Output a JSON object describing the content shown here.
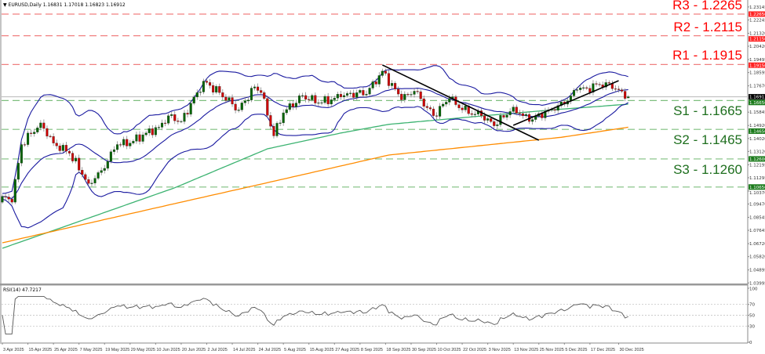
{
  "header": {
    "symbol": "EURUSD,Daily",
    "open": "1.16831",
    "high": "1.17018",
    "low": "1.16823",
    "close": "1.16912"
  },
  "rsi_header": {
    "label": "RSI(14)",
    "value": "47.7217"
  },
  "colors": {
    "resistance": "#ff0000",
    "support": "#006400",
    "bull_candle": "#006400",
    "bear_candle": "#cc0000",
    "bollinger": "#1a1aa0",
    "ma_green": "#3cb371",
    "ma_orange": "#ff8c00",
    "trendline": "#000000",
    "rsi_line": "#555555"
  },
  "levels": [
    {
      "name": "R3",
      "label": "R3 - 1.2265",
      "price": 1.2265,
      "tag": "1.22650",
      "kind": "resistance"
    },
    {
      "name": "R2",
      "label": "R2 - 1.2115",
      "price": 1.2115,
      "tag": "1.21150",
      "kind": "resistance"
    },
    {
      "name": "R1",
      "label": "R1 - 1.1915",
      "price": 1.1915,
      "tag": "1.19150",
      "kind": "resistance"
    },
    {
      "name": "S1",
      "label": "S1 - 1.1665",
      "price": 1.1665,
      "tag": "1.16650",
      "kind": "support"
    },
    {
      "name": "S2",
      "label": "S2 - 1.1465",
      "price": 1.1465,
      "tag": "1.14650",
      "kind": "support"
    },
    {
      "name": "S3",
      "label": "S3 - 1.1260",
      "price": 1.126,
      "tag": "1.12600",
      "kind": "support"
    },
    {
      "name": "extra",
      "label": "",
      "price": 1.1065,
      "tag": "1.10650",
      "kind": "support"
    }
  ],
  "current_price": {
    "price": 1.16912,
    "tag": "1.16912"
  },
  "chart_data": [
    {
      "type": "candlestick",
      "title": "",
      "y_ticks": [
        "1.23145",
        "1.22245",
        "1.21320",
        "1.20420",
        "1.19495",
        "1.18595",
        "1.17670",
        "1.15845",
        "1.14920",
        "1.14020",
        "1.13120",
        "1.12195",
        "1.11295",
        "1.10370",
        "1.09470",
        "1.08545",
        "1.07645",
        "1.06720",
        "1.05820",
        "1.04895",
        "1.03995"
      ],
      "ylim": [
        1.0395,
        1.2335
      ],
      "x_ticks": [
        {
          "date": "2025-04-03",
          "label": "3 Apr 2025"
        },
        {
          "date": "2025-04-15",
          "label": "15 Apr 2025"
        },
        {
          "date": "2025-04-25",
          "label": "25 Apr 2025"
        },
        {
          "date": "2025-05-07",
          "label": "7 May 2025"
        },
        {
          "date": "2025-05-19",
          "label": "19 May 2025"
        },
        {
          "date": "2025-05-29",
          "label": "29 May 2025"
        },
        {
          "date": "2025-06-10",
          "label": "10 Jun 2025"
        },
        {
          "date": "2025-06-20",
          "label": "20 Jun 2025"
        },
        {
          "date": "2025-07-02",
          "label": "2 Jul 2025"
        },
        {
          "date": "2025-07-14",
          "label": "14 Jul 2025"
        },
        {
          "date": "2025-07-24",
          "label": "24 Jul 2025"
        },
        {
          "date": "2025-08-05",
          "label": "5 Aug 2025"
        },
        {
          "date": "2025-08-15",
          "label": "15 Aug 2025"
        },
        {
          "date": "2025-08-27",
          "label": "27 Aug 2025"
        },
        {
          "date": "2025-09-08",
          "label": "8 Sep 2025"
        },
        {
          "date": "2025-09-18",
          "label": "18 Sep 2025"
        },
        {
          "date": "2025-09-30",
          "label": "30 Sep 2025"
        },
        {
          "date": "2025-10-10",
          "label": "10 Oct 2025"
        },
        {
          "date": "2025-10-22",
          "label": "22 Oct 2025"
        },
        {
          "date": "2025-11-03",
          "label": "3 Nov 2025"
        },
        {
          "date": "2025-11-13",
          "label": "13 Nov 2025"
        },
        {
          "date": "2025-11-25",
          "label": "25 Nov 2025"
        },
        {
          "date": "2025-12-05",
          "label": "5 Dec 2025"
        },
        {
          "date": "2025-12-17",
          "label": "17 Dec 2025"
        },
        {
          "date": "2025-12-30",
          "label": "30 Dec 2025"
        }
      ],
      "close_path": [
        [
          "2025-04-03",
          1.1
        ],
        [
          "2025-04-08",
          1.096
        ],
        [
          "2025-04-11",
          1.136
        ],
        [
          "2025-04-21",
          1.151
        ],
        [
          "2025-04-25",
          1.137
        ],
        [
          "2025-05-02",
          1.13
        ],
        [
          "2025-05-12",
          1.109
        ],
        [
          "2025-05-16",
          1.118
        ],
        [
          "2025-05-23",
          1.136
        ],
        [
          "2025-05-29",
          1.137
        ],
        [
          "2025-06-05",
          1.144
        ],
        [
          "2025-06-11",
          1.148
        ],
        [
          "2025-06-16",
          1.156
        ],
        [
          "2025-06-20",
          1.152
        ],
        [
          "2025-06-27",
          1.172
        ],
        [
          "2025-07-01",
          1.18
        ],
        [
          "2025-07-08",
          1.172
        ],
        [
          "2025-07-16",
          1.16
        ],
        [
          "2025-07-23",
          1.176
        ],
        [
          "2025-07-25",
          1.172
        ],
        [
          "2025-07-31",
          1.142
        ],
        [
          "2025-08-05",
          1.158
        ],
        [
          "2025-08-13",
          1.17
        ],
        [
          "2025-08-20",
          1.165
        ],
        [
          "2025-08-29",
          1.169
        ],
        [
          "2025-09-05",
          1.172
        ],
        [
          "2025-09-10",
          1.171
        ],
        [
          "2025-09-17",
          1.187
        ],
        [
          "2025-09-25",
          1.167
        ],
        [
          "2025-10-01",
          1.173
        ],
        [
          "2025-10-09",
          1.156
        ],
        [
          "2025-10-16",
          1.168
        ],
        [
          "2025-10-22",
          1.16
        ],
        [
          "2025-10-30",
          1.156
        ],
        [
          "2025-11-05",
          1.149
        ],
        [
          "2025-11-13",
          1.162
        ],
        [
          "2025-11-20",
          1.152
        ],
        [
          "2025-11-28",
          1.16
        ],
        [
          "2025-12-05",
          1.164
        ],
        [
          "2025-12-11",
          1.174
        ],
        [
          "2025-12-16",
          1.175
        ],
        [
          "2025-12-24",
          1.179
        ],
        [
          "2025-12-30",
          1.174
        ],
        [
          "2026-01-02",
          1.16912
        ]
      ],
      "ma_green": [
        [
          "2025-04-03",
          1.064
        ],
        [
          "2025-04-30",
          1.0787
        ],
        [
          "2025-06-18",
          1.106
        ],
        [
          "2025-07-29",
          1.133
        ],
        [
          "2025-08-29",
          1.144
        ],
        [
          "2025-09-19",
          1.15
        ],
        [
          "2025-10-31",
          1.156
        ],
        [
          "2025-12-01",
          1.16
        ],
        [
          "2026-01-02",
          1.164
        ]
      ],
      "ma_orange": [
        [
          "2025-04-03",
          1.0678
        ],
        [
          "2025-06-18",
          1.095
        ],
        [
          "2025-07-22",
          1.107
        ],
        [
          "2025-09-19",
          1.1287
        ],
        [
          "2025-12-04",
          1.141
        ],
        [
          "2026-01-02",
          1.148
        ]
      ],
      "trendlines": [
        {
          "from": [
            "2025-09-17",
            1.1912
          ],
          "to": [
            "2025-11-25",
            1.139
          ]
        },
        {
          "from": [
            "2025-11-13",
            1.1493
          ],
          "to": [
            "2025-12-30",
            1.1803
          ]
        }
      ],
      "indicators": [
        "Bollinger Bands (20)",
        "RSI(14)"
      ]
    },
    {
      "type": "line",
      "title": "RSI(14) 47.7217",
      "ylim": [
        0,
        100
      ],
      "y_ticks": [
        "100",
        "70",
        "50",
        "30",
        "0"
      ],
      "levels": [
        70,
        50,
        30
      ],
      "last_value": 47.7217
    }
  ]
}
